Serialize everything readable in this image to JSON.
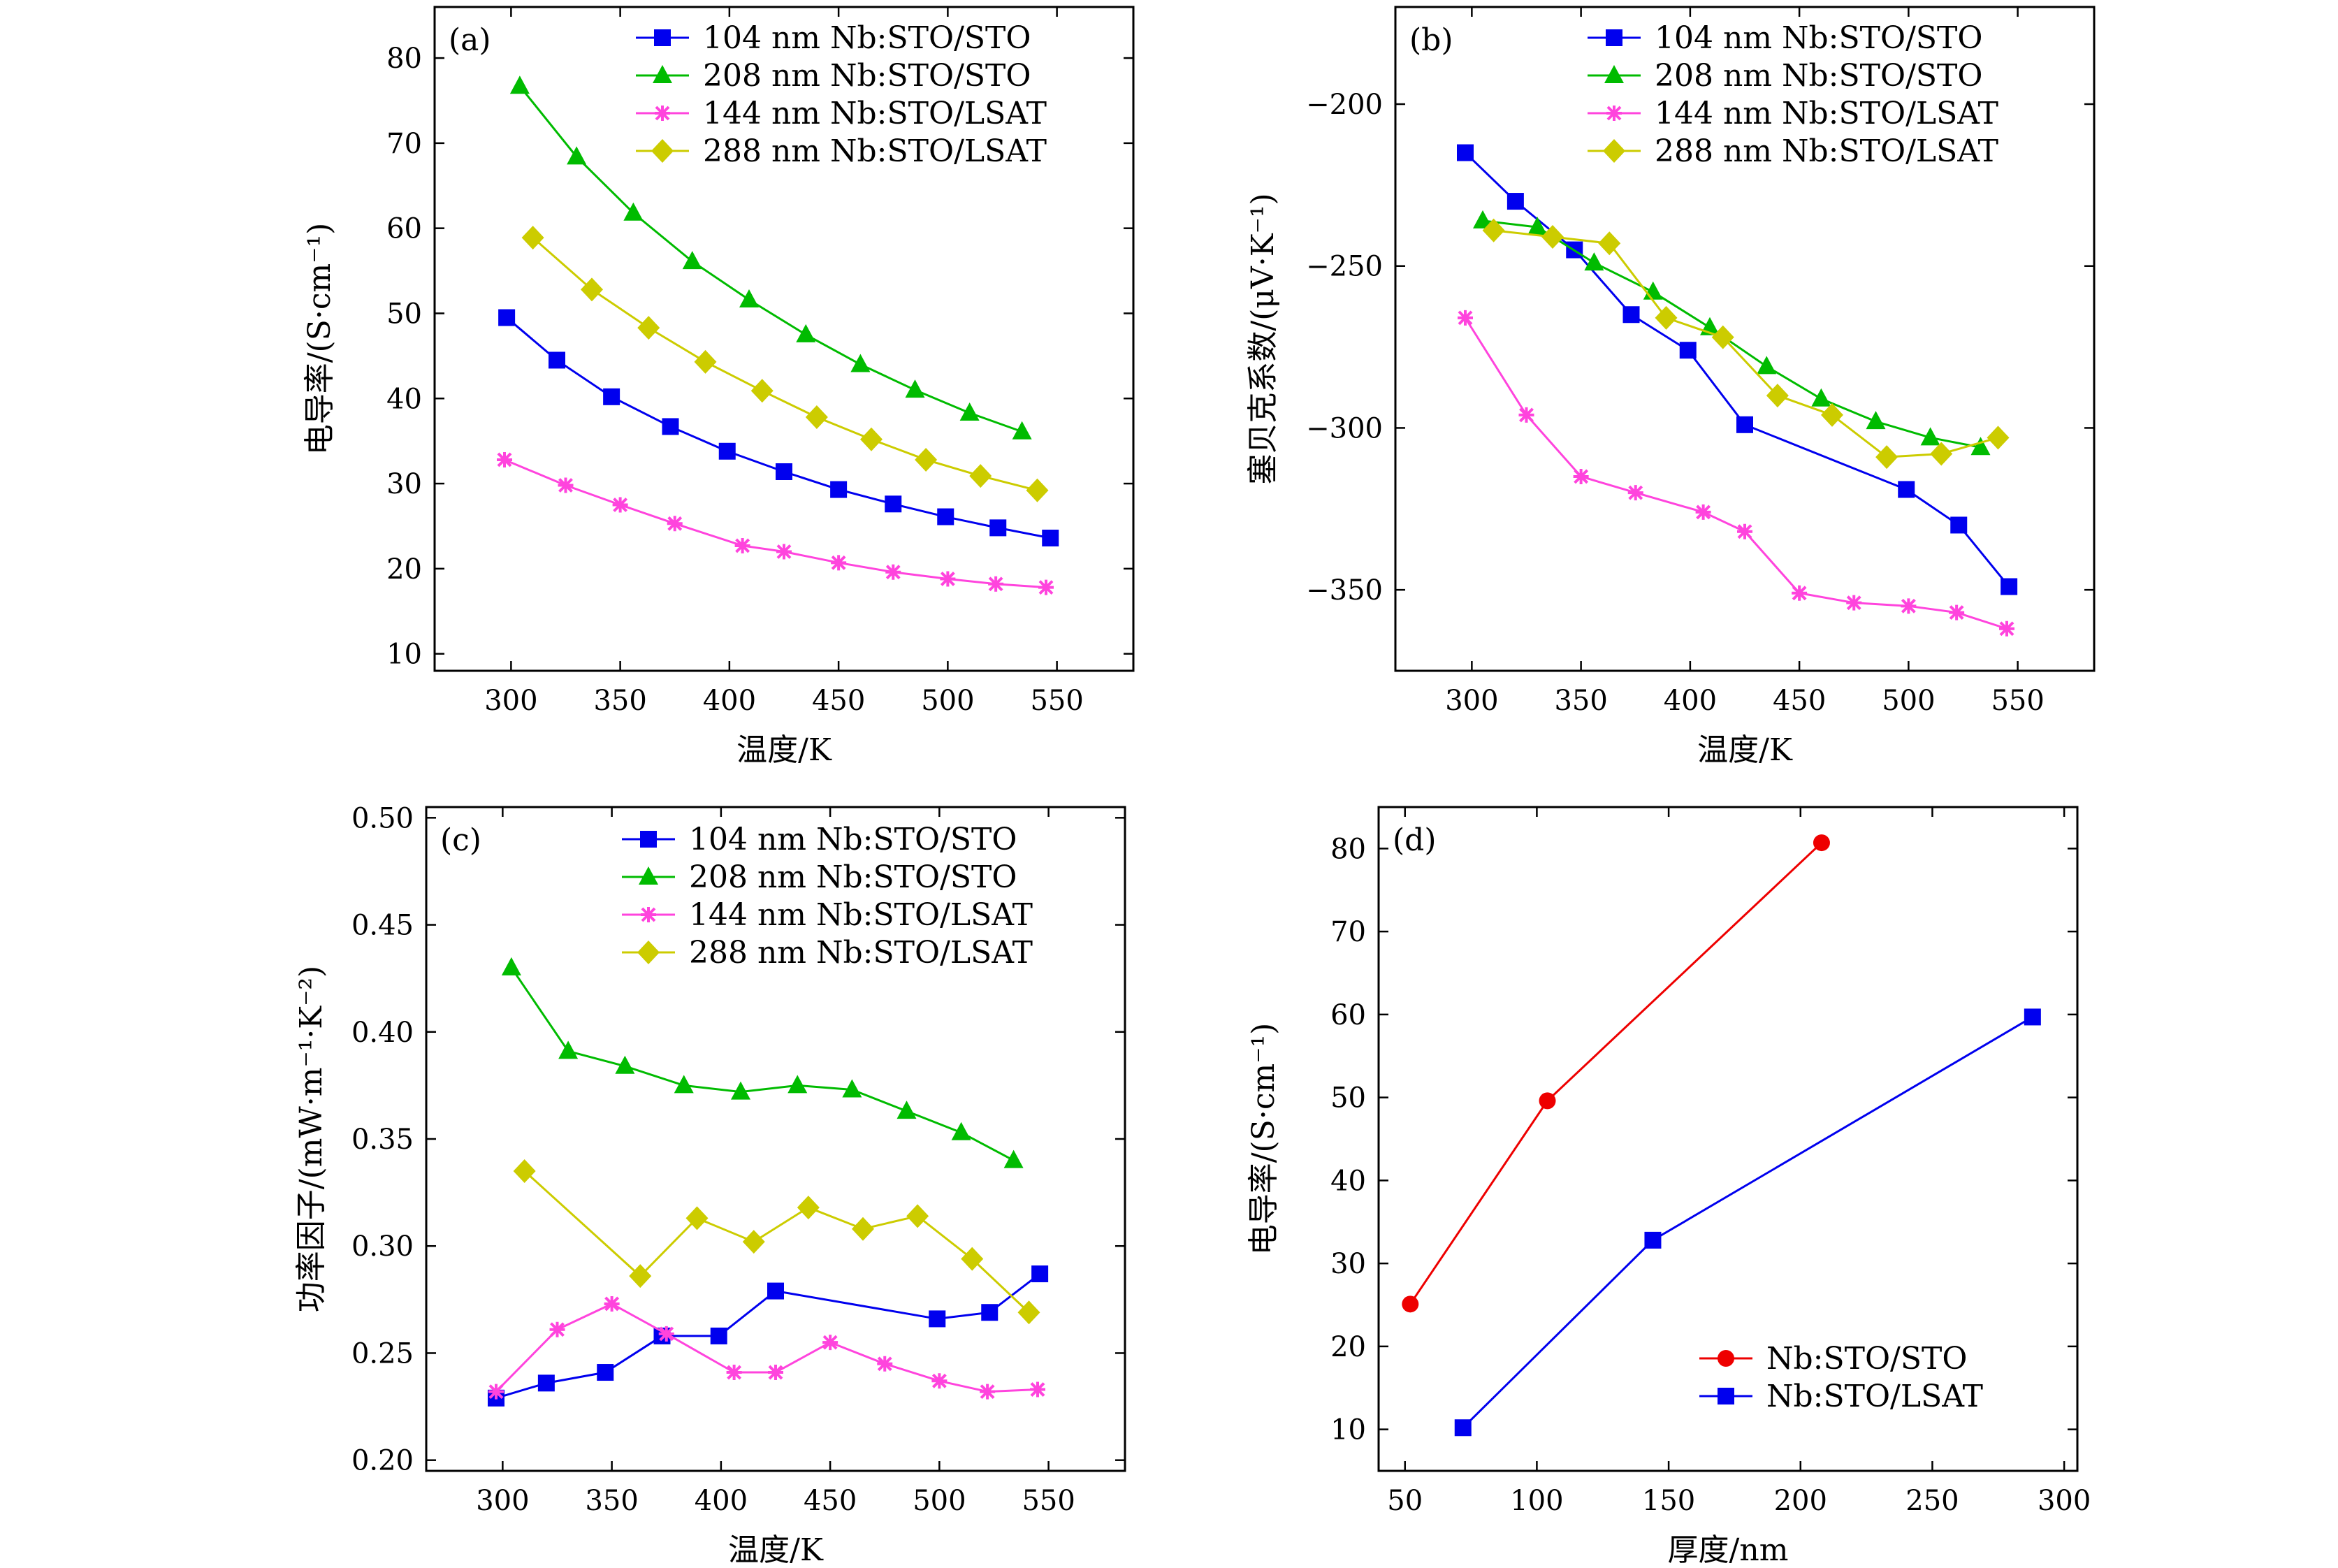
{
  "chart_data": [
    {
      "id": "a",
      "type": "line",
      "panel_label": "(a)",
      "xlabel": "温度/K",
      "ylabel": "电导率/(S·cm⁻¹)",
      "xlim": [
        265,
        585
      ],
      "ylim": [
        8,
        86
      ],
      "xticks": [
        300,
        350,
        400,
        450,
        500,
        550
      ],
      "yticks": [
        10,
        20,
        30,
        40,
        50,
        60,
        70,
        80
      ],
      "legend_position": "top-right",
      "series": [
        {
          "name": "104 nm Nb:STO/STO",
          "color": "#0000ee",
          "marker": "square",
          "x": [
            298,
            321,
            346,
            373,
            399,
            425,
            450,
            475,
            499,
            523,
            547
          ],
          "y": [
            49.5,
            44.5,
            40.2,
            36.7,
            33.8,
            31.4,
            29.3,
            27.6,
            26.1,
            24.8,
            23.6
          ]
        },
        {
          "name": "208 nm Nb:STO/STO",
          "color": "#00bb00",
          "marker": "triangle",
          "x": [
            304,
            330,
            356,
            383,
            409,
            435,
            460,
            485,
            510,
            534
          ],
          "y": [
            76.7,
            68.4,
            61.8,
            56.1,
            51.6,
            47.5,
            44.0,
            41.0,
            38.3,
            36.1
          ]
        },
        {
          "name": "144 nm Nb:STO/LSAT",
          "color": "#ff44dd",
          "marker": "star",
          "x": [
            297,
            325,
            350,
            375,
            406,
            425,
            450,
            475,
            500,
            522,
            545
          ],
          "y": [
            32.8,
            29.8,
            27.5,
            25.3,
            22.7,
            22.0,
            20.7,
            19.6,
            18.8,
            18.2,
            17.8
          ]
        },
        {
          "name": "288 nm Nb:STO/LSAT",
          "color": "#cccc00",
          "marker": "diamond",
          "x": [
            310,
            337,
            363,
            389,
            415,
            440,
            465,
            490,
            515,
            541
          ],
          "y": [
            58.9,
            52.8,
            48.3,
            44.3,
            40.9,
            37.8,
            35.2,
            32.8,
            30.9,
            29.2
          ]
        }
      ]
    },
    {
      "id": "b",
      "type": "line",
      "panel_label": "(b)",
      "xlabel": "温度/K",
      "ylabel": "塞贝克系数/(μV·K⁻¹)",
      "xlim": [
        265,
        585
      ],
      "ylim": [
        -375,
        -170
      ],
      "xticks": [
        300,
        350,
        400,
        450,
        500,
        550
      ],
      "yticks": [
        -200,
        -250,
        -300,
        -350
      ],
      "ytick_labels": [
        "−200",
        "−250",
        "−300",
        "−350"
      ],
      "legend_position": "top-right",
      "series": [
        {
          "name": "104 nm Nb:STO/STO",
          "color": "#0000ee",
          "marker": "square",
          "x": [
            297,
            320,
            347,
            373,
            399,
            425,
            499,
            523,
            546
          ],
          "y": [
            -215,
            -230,
            -245,
            -265,
            -276,
            -299,
            -319,
            -330,
            -349
          ]
        },
        {
          "name": "208 nm Nb:STO/STO",
          "color": "#00bb00",
          "marker": "triangle",
          "x": [
            305,
            330,
            356,
            383,
            409,
            435,
            460,
            485,
            510,
            533
          ],
          "y": [
            -236,
            -238,
            -249,
            -258,
            -269,
            -281,
            -291,
            -298,
            -303,
            -306
          ]
        },
        {
          "name": "144 nm Nb:STO/LSAT",
          "color": "#ff44dd",
          "marker": "star",
          "x": [
            297,
            325,
            350,
            375,
            406,
            425,
            450,
            475,
            500,
            522,
            545
          ],
          "y": [
            -266,
            -296,
            -315,
            -320,
            -326,
            -332,
            -351,
            -354,
            -355,
            -357,
            -362
          ]
        },
        {
          "name": "288 nm Nb:STO/LSAT",
          "color": "#cccc00",
          "marker": "diamond",
          "x": [
            310,
            337,
            363,
            389,
            415,
            440,
            465,
            490,
            515,
            541
          ],
          "y": [
            -239,
            -241,
            -243,
            -266,
            -272,
            -290,
            -296,
            -309,
            -308,
            -303
          ]
        }
      ]
    },
    {
      "id": "c",
      "type": "line",
      "panel_label": "(c)",
      "xlabel": "温度/K",
      "ylabel": "功率因子/(mW·m⁻¹·K⁻²)",
      "xlim": [
        265,
        585
      ],
      "ylim": [
        0.195,
        0.505
      ],
      "xticks": [
        300,
        350,
        400,
        450,
        500,
        550
      ],
      "yticks": [
        0.2,
        0.25,
        0.3,
        0.35,
        0.4,
        0.45,
        0.5
      ],
      "ytick_labels": [
        "0.20",
        "0.25",
        "0.30",
        "0.35",
        "0.40",
        "0.45",
        "0.50"
      ],
      "legend_position": "top-right",
      "series": [
        {
          "name": "104 nm Nb:STO/STO",
          "color": "#0000ee",
          "marker": "square",
          "x": [
            297,
            320,
            347,
            373,
            399,
            425,
            499,
            523,
            546
          ],
          "y": [
            0.229,
            0.236,
            0.241,
            0.258,
            0.258,
            0.279,
            0.266,
            0.269,
            0.287
          ]
        },
        {
          "name": "208 nm Nb:STO/STO",
          "color": "#00bb00",
          "marker": "triangle",
          "x": [
            304,
            330,
            356,
            383,
            409,
            435,
            460,
            485,
            510,
            534
          ],
          "y": [
            0.43,
            0.391,
            0.384,
            0.375,
            0.372,
            0.375,
            0.373,
            0.363,
            0.353,
            0.34
          ]
        },
        {
          "name": "144 nm Nb:STO/LSAT",
          "color": "#ff44dd",
          "marker": "star",
          "x": [
            297,
            325,
            350,
            375,
            406,
            425,
            450,
            475,
            500,
            522,
            545
          ],
          "y": [
            0.232,
            0.261,
            0.273,
            0.259,
            0.241,
            0.241,
            0.255,
            0.245,
            0.237,
            0.232,
            0.233
          ]
        },
        {
          "name": "288 nm Nb:STO/LSAT",
          "color": "#cccc00",
          "marker": "diamond",
          "x": [
            310,
            363,
            389,
            415,
            440,
            465,
            490,
            515,
            541
          ],
          "y": [
            0.335,
            0.286,
            0.313,
            0.302,
            0.318,
            0.308,
            0.314,
            0.294,
            0.269
          ]
        }
      ]
    },
    {
      "id": "d",
      "type": "line",
      "panel_label": "(d)",
      "xlabel": "厚度/nm",
      "ylabel": "电导率/(S·cm⁻¹)",
      "xlim": [
        40,
        305
      ],
      "ylim": [
        5,
        85
      ],
      "xticks": [
        50,
        100,
        150,
        200,
        250,
        300
      ],
      "yticks": [
        10,
        20,
        30,
        40,
        50,
        60,
        70,
        80
      ],
      "legend_position": "bottom-right",
      "series": [
        {
          "name": "Nb:STO/STO",
          "color": "#ee0000",
          "marker": "circle",
          "x": [
            52,
            104,
            208
          ],
          "y": [
            25.1,
            49.6,
            80.7
          ]
        },
        {
          "name": "Nb:STO/LSAT",
          "color": "#0000ee",
          "marker": "square",
          "x": [
            72,
            144,
            288
          ],
          "y": [
            10.2,
            32.8,
            59.7
          ]
        }
      ]
    }
  ]
}
